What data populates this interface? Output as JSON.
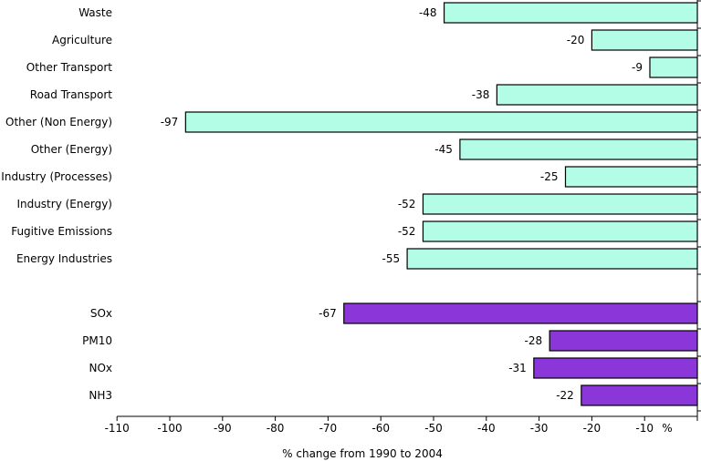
{
  "chart_data": {
    "type": "bar",
    "orientation": "horizontal",
    "xlabel": "% change from 1990 to 2004",
    "x_unit_label": "%",
    "xlim": [
      -110,
      0
    ],
    "x_ticks": [
      -110,
      -100,
      -90,
      -80,
      -70,
      -60,
      -50,
      -40,
      -30,
      -20,
      -10
    ],
    "groups": [
      {
        "color": "#b3fce6",
        "categories": [
          "Waste",
          "Agriculture",
          "Other Transport",
          "Road Transport",
          "Other (Non Energy)",
          "Other (Energy)",
          "Industry (Processes)",
          "Industry (Energy)",
          "Fugitive Emissions",
          "Energy Industries"
        ],
        "values": [
          -48,
          -20,
          -9,
          -38,
          -97,
          -45,
          -25,
          -52,
          -52,
          -55
        ],
        "labels": [
          "-48",
          "-20",
          "-9",
          "-38",
          "-97",
          "-45",
          "-25",
          "-52",
          "-52",
          "-55"
        ]
      },
      {
        "color": "#8a36d9",
        "categories": [
          "SOx",
          "PM10",
          "NOx",
          "NH3"
        ],
        "values": [
          -67,
          -28,
          -31,
          -22
        ],
        "labels": [
          "-67",
          "-28",
          "-31",
          "-22"
        ]
      }
    ]
  }
}
